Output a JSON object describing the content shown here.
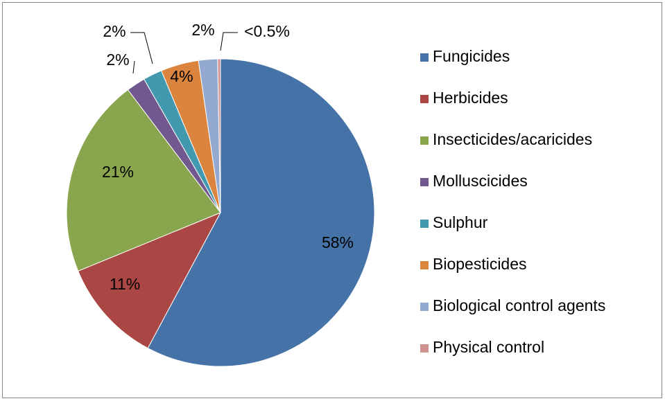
{
  "chart_data": {
    "type": "pie",
    "categories": [
      "Fungicides",
      "Herbicides",
      "Insecticides/acaricides",
      "Molluscicides",
      "Sulphur",
      "Biopesticides",
      "Biological control agents",
      "Physical control"
    ],
    "values": [
      58,
      11,
      21,
      2,
      2,
      4,
      2,
      0.3
    ],
    "value_labels": [
      "58%",
      "11%",
      "21%",
      "2%",
      "2%",
      "4%",
      "2%",
      "<0.5%"
    ],
    "colors": [
      "#4572a7",
      "#aa4643",
      "#89a54e",
      "#71588f",
      "#4198af",
      "#db843d",
      "#93a9cf",
      "#d19392"
    ],
    "legend": "right"
  }
}
